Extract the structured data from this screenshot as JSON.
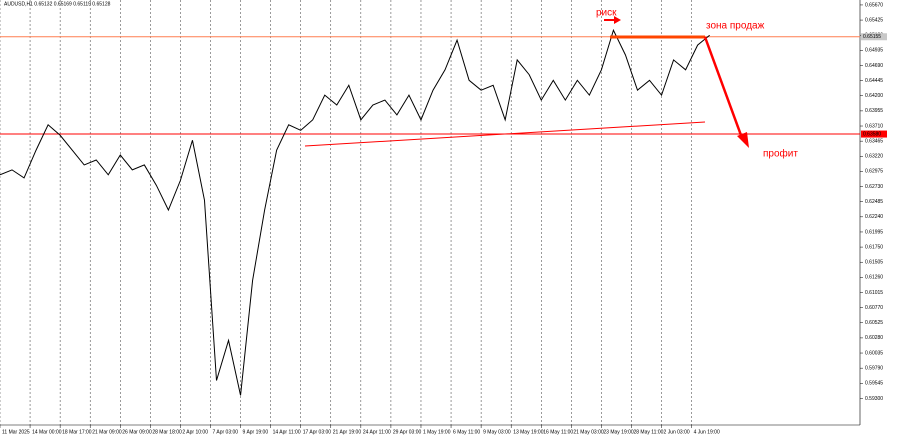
{
  "chart_data": {
    "type": "line",
    "title": "AUDUSD,H1  0.65132 0.65169 0.65119 0.65128",
    "x": [
      0,
      1,
      2,
      3,
      4,
      5,
      6,
      7,
      8,
      9,
      10,
      11,
      12,
      13,
      14,
      15,
      16,
      17,
      18,
      19,
      20,
      21,
      22,
      23,
      24,
      25,
      26,
      27,
      28,
      29,
      30,
      31,
      32,
      33,
      34,
      35,
      36,
      37,
      38,
      39,
      40,
      41,
      42,
      43,
      44,
      45,
      46,
      47,
      48,
      49,
      50,
      51,
      52,
      53,
      54,
      55,
      56,
      57,
      58,
      59
    ],
    "series": [
      {
        "name": "AUDUSD",
        "color": "#000000",
        "values": [
          0.6292,
          0.63,
          0.6287,
          0.6332,
          0.6373,
          0.6356,
          0.6332,
          0.6308,
          0.6316,
          0.6292,
          0.6324,
          0.63,
          0.6308,
          0.6275,
          0.6235,
          0.6283,
          0.6348,
          0.6251,
          0.5959,
          0.6024,
          0.5935,
          0.6121,
          0.6235,
          0.6332,
          0.6373,
          0.6364,
          0.6381,
          0.6421,
          0.6405,
          0.6437,
          0.6381,
          0.6405,
          0.6413,
          0.6389,
          0.6421,
          0.6381,
          0.6429,
          0.6462,
          0.651,
          0.6445,
          0.6429,
          0.6437,
          0.6381,
          0.6478,
          0.6454,
          0.6413,
          0.6445,
          0.6413,
          0.6445,
          0.6421,
          0.6462,
          0.6526,
          0.6486,
          0.6429,
          0.6445,
          0.6421,
          0.6478,
          0.6462,
          0.6502,
          0.6518
        ]
      }
    ],
    "xlim": [
      0,
      71.5
    ],
    "ylim": [
      0.5887,
      0.6575
    ],
    "xticks": [
      {
        "value": 0,
        "label": "11 Mar 2025"
      },
      {
        "value": 2.5,
        "label": "14 Mar 00:00"
      },
      {
        "value": 5,
        "label": "18 Mar 17:00"
      },
      {
        "value": 7.5,
        "label": "21 Mar 09:00"
      },
      {
        "value": 10,
        "label": "26 Mar 09:00"
      },
      {
        "value": 12.5,
        "label": "28 Mar 18:00"
      },
      {
        "value": 15,
        "label": "2 Apr 10:00"
      },
      {
        "value": 17.5,
        "label": "7 Apr 03:00"
      },
      {
        "value": 20,
        "label": "9 Apr 19:00"
      },
      {
        "value": 22.5,
        "label": "14 Apr 11:00"
      },
      {
        "value": 25,
        "label": "17 Apr 03:00"
      },
      {
        "value": 27.5,
        "label": "21 Apr 19:00"
      },
      {
        "value": 30,
        "label": "24 Apr 11:00"
      },
      {
        "value": 32.5,
        "label": "29 Apr 03:00"
      },
      {
        "value": 35,
        "label": "1 May 19:00"
      },
      {
        "value": 37.5,
        "label": "6 May 11:00"
      },
      {
        "value": 40,
        "label": "9 May 03:00"
      },
      {
        "value": 42.5,
        "label": "13 May 19:00"
      },
      {
        "value": 45,
        "label": "16 May 11:00"
      },
      {
        "value": 47.5,
        "label": "21 May 03:00"
      },
      {
        "value": 50,
        "label": "23 May 19:00"
      },
      {
        "value": 52.5,
        "label": "28 May 11:00"
      },
      {
        "value": 55,
        "label": "2 Jun 03:00"
      },
      {
        "value": 57.5,
        "label": "4 Jun 19:00"
      }
    ],
    "yticks": [
      {
        "value": 0.6567,
        "label": "0.65670"
      },
      {
        "value": 0.65425,
        "label": "0.65425"
      },
      {
        "value": 0.6518,
        "label": "0.65180"
      },
      {
        "value": 0.64935,
        "label": "0.64935"
      },
      {
        "value": 0.6469,
        "label": "0.64690"
      },
      {
        "value": 0.64445,
        "label": "0.64445"
      },
      {
        "value": 0.642,
        "label": "0.64200"
      },
      {
        "value": 0.63955,
        "label": "0.63955"
      },
      {
        "value": 0.6371,
        "label": "0.63710"
      },
      {
        "value": 0.63465,
        "label": "0.63465"
      },
      {
        "value": 0.6322,
        "label": "0.63220"
      },
      {
        "value": 0.62975,
        "label": "0.62975"
      },
      {
        "value": 0.6273,
        "label": "0.62730"
      },
      {
        "value": 0.62485,
        "label": "0.62485"
      },
      {
        "value": 0.6224,
        "label": "0.62240"
      },
      {
        "value": 0.61995,
        "label": "0.61995"
      },
      {
        "value": 0.6175,
        "label": "0.61750"
      },
      {
        "value": 0.61505,
        "label": "0.61505"
      },
      {
        "value": 0.6126,
        "label": "0.61260"
      },
      {
        "value": 0.61015,
        "label": "0.61015"
      },
      {
        "value": 0.6077,
        "label": "0.60770"
      },
      {
        "value": 0.60525,
        "label": "0.60525"
      },
      {
        "value": 0.6028,
        "label": "0.60280"
      },
      {
        "value": 0.60035,
        "label": "0.60035"
      },
      {
        "value": 0.5979,
        "label": "0.59790"
      },
      {
        "value": 0.59545,
        "label": "0.59545"
      },
      {
        "value": 0.593,
        "label": "0.59300"
      }
    ],
    "levels": [
      {
        "value": 0.65155,
        "color": "#ff7f50",
        "box": "#c8c8c8"
      },
      {
        "value": 0.6358,
        "label": "0.63580",
        "color": "#ff0000",
        "box": "#ff0000"
      }
    ],
    "annotations": [
      "риск",
      "зона продаж",
      "профит"
    ],
    "grid": true
  }
}
